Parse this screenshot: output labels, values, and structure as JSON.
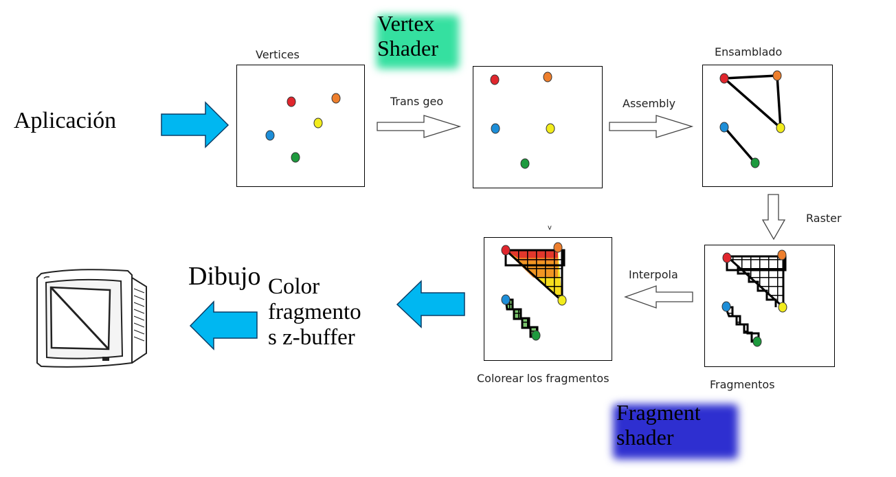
{
  "labels": {
    "aplicacion": "Aplicación",
    "vertices": "Vertices",
    "vertex_shader": "Vertex\nShader",
    "trans_geo": "Trans geo",
    "assembly": "Assembly",
    "ensamblado": "Ensamblado",
    "raster": "Raster",
    "interpola": "Interpola",
    "fragmentos": "Fragmentos",
    "colorear": "Colorear los fragmentos",
    "small_mark": "v",
    "fragment_shader": "Fragment\nshader",
    "dibujo": "Dibujo",
    "color_fragmentos": "Color\nfragmento\ns z-buffer"
  },
  "colors": {
    "arrow_fill": "#00b7f1",
    "vertex_shader_glow": "#35e0a0",
    "fragment_shader_glow": "#2e2fd0",
    "point_red": "#e0262d",
    "point_orange": "#ee7f2d",
    "point_yellow": "#f2ec1c",
    "point_blue": "#1d8ed8",
    "point_green": "#1e9a3e",
    "fill_red": "#e0262d",
    "fill_orange": "#f08a24",
    "fill_yellow": "#f6dd1e",
    "fill_green": "#5ab84a"
  }
}
